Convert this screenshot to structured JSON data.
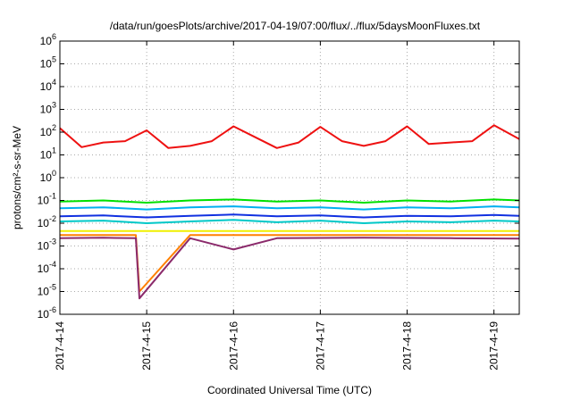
{
  "chart_data": {
    "type": "line",
    "title": "/data/run/goesPlots/archive/2017-04-19/07:00/flux/../flux/5daysMoonFluxes.txt",
    "xlabel": "Coordinated Universal Time (UTC)",
    "ylabel": "protons/cm²-s-sr-MeV",
    "y_scale": "log",
    "ylim": [
      1e-06,
      1000000.0
    ],
    "xlim": [
      "2017-04-14T00:00",
      "2017-04-19T07:00"
    ],
    "grid": true,
    "legend": "none",
    "x_ticks": [
      "2017-4-14",
      "2017-4-15",
      "2017-4-16",
      "2017-4-17",
      "2017-4-18",
      "2017-4-19"
    ],
    "y_ticks": [
      {
        "base": "10",
        "exp": "-6"
      },
      {
        "base": "10",
        "exp": "-5"
      },
      {
        "base": "10",
        "exp": "-4"
      },
      {
        "base": "10",
        "exp": "-3"
      },
      {
        "base": "10",
        "exp": "-2"
      },
      {
        "base": "10",
        "exp": "-1"
      },
      {
        "base": "10",
        "exp": "0"
      },
      {
        "base": "10",
        "exp": "1"
      },
      {
        "base": "10",
        "exp": "2"
      },
      {
        "base": "10",
        "exp": "3"
      },
      {
        "base": "10",
        "exp": "4"
      },
      {
        "base": "10",
        "exp": "5"
      },
      {
        "base": "10",
        "exp": "6"
      }
    ],
    "series": [
      {
        "color": "#00e000",
        "x": [
          "2017-04-14T00:00",
          "2017-04-14T12:00",
          "2017-04-15T00:00",
          "2017-04-15T12:00",
          "2017-04-16T00:00",
          "2017-04-16T12:00",
          "2017-04-17T00:00",
          "2017-04-17T12:00",
          "2017-04-18T00:00",
          "2017-04-18T12:00",
          "2017-04-19T00:00",
          "2017-04-19T07:00"
        ],
        "y": [
          0.09,
          0.1,
          0.08,
          0.1,
          0.11,
          0.09,
          0.1,
          0.08,
          0.1,
          0.09,
          0.11,
          0.1
        ]
      },
      {
        "color": "#00b0f0",
        "x": [
          "2017-04-14T00:00",
          "2017-04-14T12:00",
          "2017-04-15T00:00",
          "2017-04-15T12:00",
          "2017-04-16T00:00",
          "2017-04-16T12:00",
          "2017-04-17T00:00",
          "2017-04-17T12:00",
          "2017-04-18T00:00",
          "2017-04-18T12:00",
          "2017-04-19T00:00",
          "2017-04-19T07:00"
        ],
        "y": [
          0.045,
          0.05,
          0.04,
          0.05,
          0.055,
          0.045,
          0.05,
          0.04,
          0.05,
          0.045,
          0.055,
          0.05
        ]
      },
      {
        "color": "#1030e0",
        "x": [
          "2017-04-14T00:00",
          "2017-04-14T12:00",
          "2017-04-15T00:00",
          "2017-04-15T12:00",
          "2017-04-16T00:00",
          "2017-04-16T12:00",
          "2017-04-17T00:00",
          "2017-04-17T12:00",
          "2017-04-18T00:00",
          "2017-04-18T12:00",
          "2017-04-19T00:00",
          "2017-04-19T07:00"
        ],
        "y": [
          0.02,
          0.022,
          0.018,
          0.021,
          0.024,
          0.02,
          0.022,
          0.018,
          0.021,
          0.02,
          0.023,
          0.021
        ]
      },
      {
        "color": "#00c8c8",
        "x": [
          "2017-04-14T00:00",
          "2017-04-14T12:00",
          "2017-04-15T00:00",
          "2017-04-15T12:00",
          "2017-04-16T00:00",
          "2017-04-16T12:00",
          "2017-04-17T00:00",
          "2017-04-17T12:00",
          "2017-04-18T00:00",
          "2017-04-18T12:00",
          "2017-04-19T00:00",
          "2017-04-19T07:00"
        ],
        "y": [
          0.012,
          0.013,
          0.01,
          0.012,
          0.014,
          0.011,
          0.013,
          0.01,
          0.012,
          0.011,
          0.013,
          0.012
        ]
      },
      {
        "color": "#f0f000",
        "x": [
          "2017-04-14T00:00",
          "2017-04-14T12:00",
          "2017-04-15T00:00",
          "2017-04-15T12:00",
          "2017-04-16T00:00",
          "2017-04-16T12:00",
          "2017-04-17T00:00",
          "2017-04-17T12:00",
          "2017-04-18T00:00",
          "2017-04-18T12:00",
          "2017-04-19T00:00",
          "2017-04-19T07:00"
        ],
        "y": [
          0.0045,
          0.0045,
          0.0045,
          0.0045,
          0.0045,
          0.0045,
          0.0045,
          0.0045,
          0.0045,
          0.0045,
          0.0045,
          0.0045
        ]
      },
      {
        "color": "#ff8000",
        "x": [
          "2017-04-14T00:00",
          "2017-04-14T12:00",
          "2017-04-14T21:00",
          "2017-04-14T22:00",
          "2017-04-15T12:00",
          "2017-04-16T00:00",
          "2017-04-16T12:00",
          "2017-04-17T12:00",
          "2017-04-18T12:00",
          "2017-04-19T07:00"
        ],
        "y": [
          0.003,
          0.003,
          0.003,
          1e-05,
          0.003,
          0.003,
          0.003,
          0.003,
          0.003,
          0.003
        ]
      },
      {
        "color": "#8b2a6b",
        "x": [
          "2017-04-14T00:00",
          "2017-04-14T12:00",
          "2017-04-14T21:00",
          "2017-04-14T22:00",
          "2017-04-15T12:00",
          "2017-04-16T00:00",
          "2017-04-16T12:00",
          "2017-04-17T12:00",
          "2017-04-18T12:00",
          "2017-04-19T07:00"
        ],
        "y": [
          0.0022,
          0.0023,
          0.0022,
          5e-06,
          0.0022,
          0.0007,
          0.0022,
          0.0023,
          0.0022,
          0.0021
        ]
      },
      {
        "color": "#ee1111",
        "x": [
          "2017-04-14T00:00",
          "2017-04-14T06:00",
          "2017-04-14T12:00",
          "2017-04-14T18:00",
          "2017-04-15T00:00",
          "2017-04-15T06:00",
          "2017-04-15T12:00",
          "2017-04-15T18:00",
          "2017-04-16T00:00",
          "2017-04-16T06:00",
          "2017-04-16T12:00",
          "2017-04-16T18:00",
          "2017-04-17T00:00",
          "2017-04-17T06:00",
          "2017-04-17T12:00",
          "2017-04-17T18:00",
          "2017-04-18T00:00",
          "2017-04-18T06:00",
          "2017-04-18T12:00",
          "2017-04-18T18:00",
          "2017-04-19T00:00",
          "2017-04-19T07:00"
        ],
        "y": [
          150,
          22,
          35,
          40,
          120,
          20,
          25,
          40,
          180,
          60,
          20,
          35,
          170,
          40,
          25,
          40,
          180,
          30,
          35,
          40,
          200,
          50
        ]
      }
    ]
  }
}
